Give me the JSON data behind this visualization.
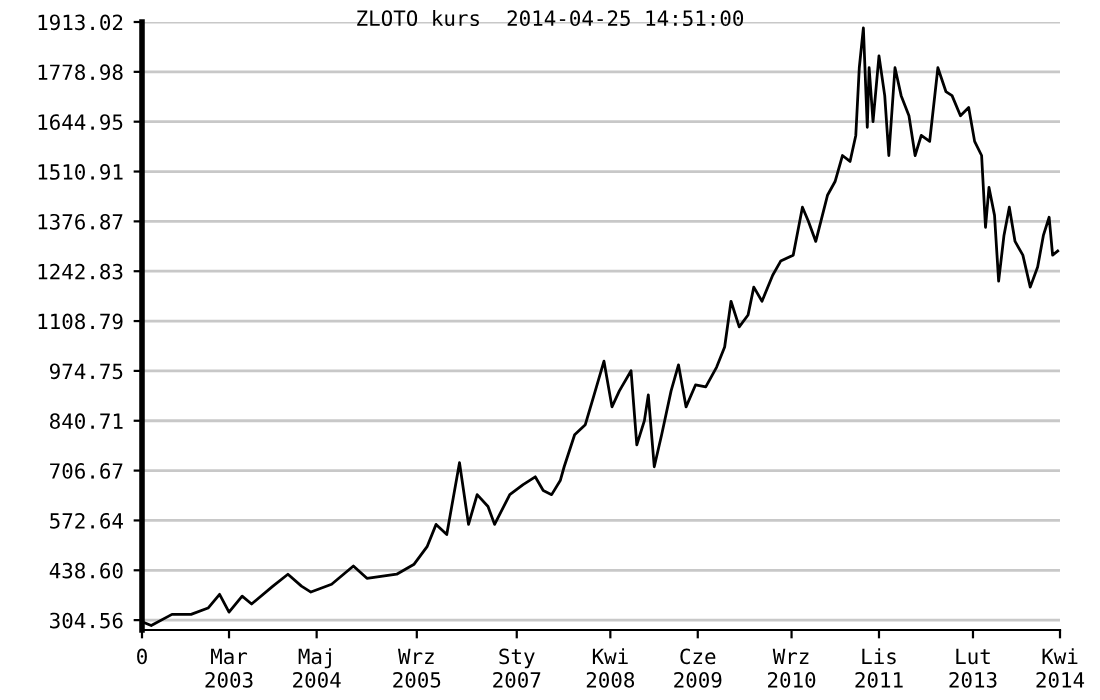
{
  "chart_data": {
    "type": "line",
    "title": "ZLOTO kurs  2014-04-25 14:51:00",
    "series": [
      {
        "color": "#000000",
        "x": [
          "2002-01-01",
          "2002-02-15",
          "2002-05-27",
          "2002-08-28",
          "2002-11-19",
          "2003-01-14",
          "2003-03-01",
          "2003-05-04",
          "2003-06-19",
          "2003-10-01",
          "2003-12-13",
          "2004-02-17",
          "2004-04-03",
          "2004-07-13",
          "2004-10-27",
          "2005-01-01",
          "2005-05-26",
          "2005-08-19",
          "2005-10-22",
          "2005-12-04",
          "2006-01-25",
          "2006-03-28",
          "2006-05-11",
          "2006-06-22",
          "2006-08-14",
          "2006-09-15",
          "2006-11-28",
          "2007-02-01",
          "2007-04-01",
          "2007-05-10",
          "2007-06-20",
          "2007-08-01",
          "2007-08-20",
          "2007-10-10",
          "2007-12-01",
          "2008-01-10",
          "2008-03-01",
          "2008-04-09",
          "2008-05-15",
          "2008-07-11",
          "2008-08-08",
          "2008-09-14",
          "2008-10-03",
          "2008-11-01",
          "2008-12-07",
          "2009-01-22",
          "2009-02-27",
          "2009-04-05",
          "2009-05-21",
          "2009-07-10",
          "2009-09-01",
          "2009-10-10",
          "2009-11-10",
          "2009-12-20",
          "2010-02-01",
          "2010-03-01",
          "2010-04-10",
          "2010-06-01",
          "2010-07-10",
          "2010-09-09",
          "2010-10-24",
          "2010-11-22",
          "2010-12-28",
          "2011-02-23",
          "2011-04-01",
          "2011-05-07",
          "2011-06-13",
          "2011-07-11",
          "2011-07-28",
          "2011-08-17",
          "2011-09-05",
          "2011-09-14",
          "2011-10-03",
          "2011-11-01",
          "2011-11-29",
          "2011-12-19",
          "2012-01-18",
          "2012-02-17",
          "2012-03-26",
          "2012-04-25",
          "2012-05-25",
          "2012-07-05",
          "2012-08-14",
          "2012-09-22",
          "2012-10-22",
          "2012-12-02",
          "2013-01-11",
          "2013-02-09",
          "2013-03-15",
          "2013-04-03",
          "2013-04-20",
          "2013-05-17",
          "2013-06-06",
          "2013-07-02",
          "2013-07-28",
          "2013-08-25",
          "2013-10-02",
          "2013-11-07",
          "2013-12-13",
          "2014-01-10",
          "2014-02-07",
          "2014-02-24",
          "2014-03-21"
        ],
        "values": [
          300,
          290,
          320,
          320,
          337,
          374,
          326,
          369,
          348,
          396,
          428,
          396,
          380,
          401,
          450,
          417,
          428,
          455,
          503,
          562,
          535,
          728,
          562,
          642,
          610,
          562,
          642,
          669,
          690,
          653,
          642,
          680,
          717,
          803,
          830,
          905,
          1001,
          878,
          921,
          975,
          776,
          841,
          910,
          717,
          803,
          921,
          991,
          878,
          937,
          932,
          985,
          1039,
          1162,
          1093,
          1125,
          1200,
          1162,
          1232,
          1270,
          1286,
          1415,
          1377,
          1323,
          1447,
          1484,
          1554,
          1538,
          1608,
          1790,
          1897,
          1630,
          1790,
          1645,
          1822,
          1715,
          1554,
          1790,
          1715,
          1661,
          1554,
          1608,
          1592,
          1790,
          1726,
          1715,
          1661,
          1683,
          1592,
          1554,
          1361,
          1468,
          1393,
          1216,
          1339,
          1415,
          1323,
          1286,
          1200,
          1254,
          1339,
          1388,
          1286,
          1297
        ]
      }
    ],
    "xlim": [
      "2002-01-01",
      "2014-04-01"
    ],
    "xticks": [
      {
        "value": "2002-01-01",
        "label": "0"
      },
      {
        "value": "2003-03-01",
        "label": "Mar\n2003"
      },
      {
        "value": "2004-05-01",
        "label": "Maj\n2004"
      },
      {
        "value": "2005-09-01",
        "label": "Wrz\n2005"
      },
      {
        "value": "2007-01-01",
        "label": "Sty\n2007"
      },
      {
        "value": "2008-04-01",
        "label": "Kwi\n2008"
      },
      {
        "value": "2009-06-01",
        "label": "Cze\n2009"
      },
      {
        "value": "2010-09-01",
        "label": "Wrz\n2010"
      },
      {
        "value": "2011-11-01",
        "label": "Lis\n2011"
      },
      {
        "value": "2013-02-01",
        "label": "Lut\n2013"
      },
      {
        "value": "2014-04-01",
        "label": "Kwi\n2014"
      }
    ],
    "ylim": [
      278,
      1913.02
    ],
    "yticks": [
      304.56,
      {
        "value": 438.6,
        "label": "438.60"
      },
      572.64,
      706.67,
      840.71,
      974.75,
      1108.79,
      1242.83,
      1376.87,
      1510.91,
      1644.95,
      1778.98,
      1913.02
    ],
    "grid": "y",
    "legend": false
  }
}
